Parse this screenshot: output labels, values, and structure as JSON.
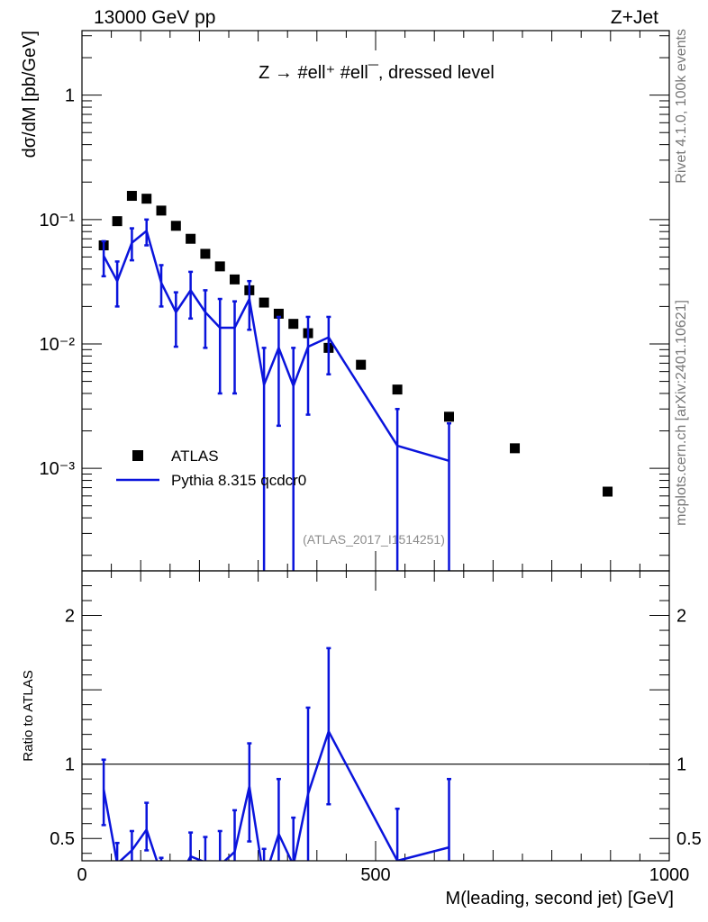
{
  "header": {
    "left": "13000 GeV pp",
    "right": "Z+Jet",
    "side_top": "Rivet 4.1.0,  100k events",
    "side_bottom": "mcplots.cern.ch [arXiv:2401.10621]"
  },
  "colors": {
    "atlas": "#000000",
    "pythia": "#0a14dc",
    "ref_line": "#000000",
    "watermark": "#8c8c8c"
  },
  "chart_data": [
    {
      "type": "scatter",
      "title": "Z → #ell⁺ #ell¯, dressed level",
      "watermark": "(ATLAS_2017_I1514251)",
      "xlabel": "",
      "ylabel": "dσ/dM [pb/GeV]",
      "xlim": [
        0,
        1000
      ],
      "ylim": [
        0.00015,
        3.3
      ],
      "yscale": "log",
      "yticks": [
        {
          "value": 0.001,
          "label": "10⁻³"
        },
        {
          "value": 0.01,
          "label": "10⁻²"
        },
        {
          "value": 0.1,
          "label": "10⁻¹"
        },
        {
          "value": 1,
          "label": "1"
        }
      ],
      "legend": {
        "position": "lower-left",
        "entries": [
          "ATLAS",
          "Pythia 8.315 qcdcr0"
        ]
      },
      "series": [
        {
          "name": "ATLAS",
          "kind": "markers",
          "x": [
            37,
            60,
            85,
            110,
            135,
            160,
            185,
            210,
            235,
            260,
            285,
            310,
            335,
            360,
            385,
            420,
            475,
            537,
            625,
            737,
            895
          ],
          "y": [
            0.062,
            0.097,
            0.155,
            0.147,
            0.118,
            0.089,
            0.07,
            0.053,
            0.042,
            0.033,
            0.027,
            0.0215,
            0.0175,
            0.0145,
            0.0122,
            0.0093,
            0.0068,
            0.0043,
            0.0026,
            0.00145,
            0.00065
          ]
        },
        {
          "name": "Pythia 8.315 qcdcr0",
          "kind": "line-with-errors",
          "x": [
            37,
            60,
            85,
            110,
            135,
            160,
            185,
            210,
            235,
            260,
            285,
            310,
            335,
            360,
            385,
            420,
            537,
            625
          ],
          "y": [
            0.051,
            0.032,
            0.065,
            0.081,
            0.031,
            0.018,
            0.027,
            0.018,
            0.0135,
            0.0135,
            0.023,
            0.0047,
            0.0093,
            0.0046,
            0.0095,
            0.0113,
            0.00152,
            0.00115
          ],
          "err_low": [
            0.035,
            0.02,
            0.047,
            0.062,
            0.02,
            0.0095,
            0.016,
            0.0093,
            0.004,
            0.004,
            0.013,
            1e-05,
            0.0022,
            1e-05,
            0.0027,
            0.0057,
            1e-05,
            1e-05
          ],
          "err_high": [
            0.067,
            0.046,
            0.085,
            0.1,
            0.043,
            0.026,
            0.038,
            0.027,
            0.023,
            0.022,
            0.032,
            0.0093,
            0.0165,
            0.0093,
            0.0165,
            0.0165,
            0.003,
            0.0023
          ]
        }
      ]
    },
    {
      "type": "line",
      "xlabel": "M(leading, second jet) [GeV]",
      "ylabel": "Ratio to ATLAS",
      "xlim": [
        0,
        1000
      ],
      "ylim": [
        0.35,
        2.3
      ],
      "xticks": [
        0,
        500,
        1000
      ],
      "yticks": [
        {
          "value": 0.5,
          "label": "0.5"
        },
        {
          "value": 1,
          "label": "1"
        },
        {
          "value": 2,
          "label": "2"
        }
      ],
      "reference_line": 1,
      "series": [
        {
          "name": "Pythia 8.315 qcdcr0 / ATLAS",
          "x": [
            37,
            60,
            85,
            110,
            135,
            160,
            185,
            210,
            235,
            260,
            285,
            310,
            335,
            360,
            385,
            420,
            537,
            625
          ],
          "y": [
            0.83,
            0.33,
            0.42,
            0.56,
            0.26,
            0.2,
            0.38,
            0.34,
            0.32,
            0.41,
            0.85,
            0.22,
            0.53,
            0.32,
            0.8,
            1.22,
            0.35,
            0.44
          ],
          "err_low": [
            0.59,
            0.2,
            0.3,
            0.42,
            0.17,
            0.11,
            0.22,
            0.17,
            0.09,
            0.12,
            0.48,
            0.0,
            0.12,
            0.0,
            0.22,
            0.73,
            0.0,
            0.0
          ],
          "err_high": [
            1.03,
            0.47,
            0.55,
            0.74,
            0.37,
            0.29,
            0.54,
            0.51,
            0.55,
            0.69,
            1.14,
            0.43,
            0.9,
            0.64,
            1.38,
            1.78,
            0.7,
            0.9
          ]
        }
      ]
    }
  ]
}
